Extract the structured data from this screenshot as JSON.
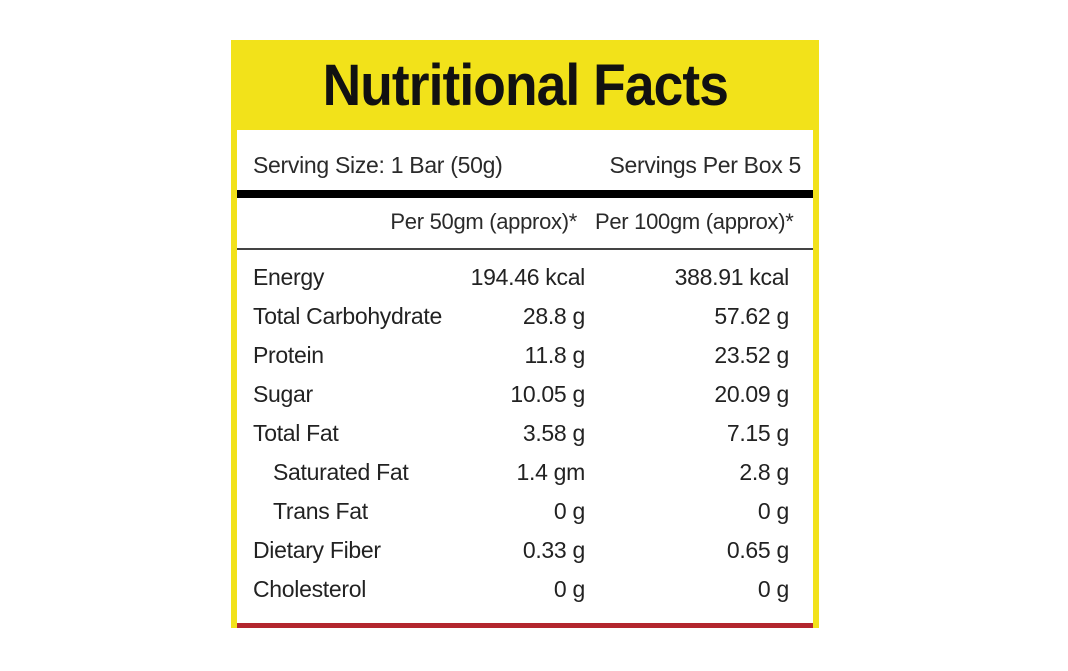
{
  "label": {
    "title": "Nutritional Facts",
    "serving_size": "Serving Size: 1 Bar (50g)",
    "servings_per_box": "Servings Per Box 5",
    "columns": [
      "Per 50gm (approx)*",
      "Per 100gm (approx)*"
    ],
    "nutrients": [
      {
        "name": "Energy",
        "per_50g": "194.46 kcal",
        "per_100g": "388.91 kcal",
        "indent": false
      },
      {
        "name": "Total Carbohydrate",
        "per_50g": "28.8 g",
        "per_100g": "57.62 g",
        "indent": false
      },
      {
        "name": "Protein",
        "per_50g": "11.8 g",
        "per_100g": "23.52 g",
        "indent": false
      },
      {
        "name": "Sugar",
        "per_50g": "10.05 g",
        "per_100g": "20.09 g",
        "indent": false
      },
      {
        "name": "Total Fat",
        "per_50g": "3.58 g",
        "per_100g": "7.15 g",
        "indent": false
      },
      {
        "name": "Saturated Fat",
        "per_50g": "1.4 gm",
        "per_100g": "2.8 g",
        "indent": true
      },
      {
        "name": "Trans Fat",
        "per_50g": "0 g",
        "per_100g": "0 g",
        "indent": true
      },
      {
        "name": "Dietary Fiber",
        "per_50g": "0.33 g",
        "per_100g": "0.65 g",
        "indent": false
      },
      {
        "name": "Cholesterol",
        "per_50g": "0 g",
        "per_100g": "0 g",
        "indent": false
      }
    ]
  },
  "colors": {
    "frame_yellow": "#f2e21a",
    "bottom_strip": "#b3262e",
    "text": "#222222"
  }
}
